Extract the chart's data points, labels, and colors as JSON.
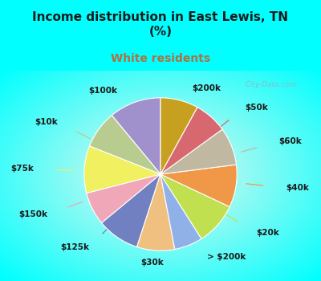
{
  "title": "Income distribution in East Lewis, TN\n(%)",
  "subtitle": "White residents",
  "title_color": "#1a1a1a",
  "subtitle_color": "#b07040",
  "background_cyan": "#00ffff",
  "labels": [
    "$100k",
    "$10k",
    "$75k",
    "$150k",
    "$125k",
    "$30k",
    "> $200k",
    "$20k",
    "$40k",
    "$60k",
    "$50k",
    "$200k"
  ],
  "values": [
    11,
    8,
    10,
    7,
    9,
    8,
    6,
    9,
    9,
    8,
    7,
    8
  ],
  "colors": [
    "#a090cc",
    "#b8cc90",
    "#f0f060",
    "#f0a8b8",
    "#7080c0",
    "#f0c080",
    "#90b0e8",
    "#c0e050",
    "#f09848",
    "#c0b8a0",
    "#d86870",
    "#c8a020"
  ],
  "label_fontsize": 7.5,
  "wedge_edgecolor": "#ffffff",
  "wedge_linewidth": 0.8,
  "title_fontsize": 11,
  "subtitle_fontsize": 10
}
